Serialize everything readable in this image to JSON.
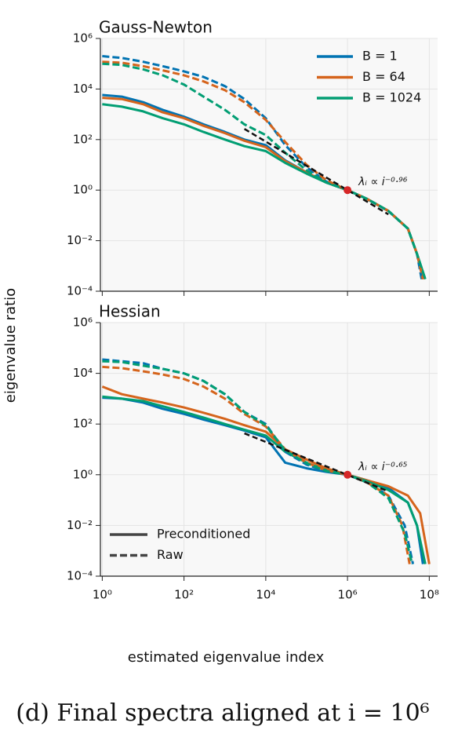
{
  "figure": {
    "ylabel": "eigenvalue ratio",
    "xlabel": "estimated eigenvalue index",
    "caption": "(d) Final spectra aligned at i = 10⁶"
  },
  "chart_data": [
    {
      "type": "line",
      "title": "Gauss-Newton",
      "xscale": "log",
      "yscale": "log",
      "grid": true,
      "xlim": [
        0.9,
        160000000.0
      ],
      "ylim": [
        0.0001,
        1000000
      ],
      "xticks": [
        1,
        100,
        10000,
        1000000,
        100000000
      ],
      "yticks": [
        {
          "value": 0.0001,
          "label": "10⁻⁴"
        },
        {
          "value": 0.01,
          "label": "10⁻²"
        },
        {
          "value": 1,
          "label": "10⁰"
        },
        {
          "value": 100,
          "label": "10²"
        },
        {
          "value": 10000,
          "label": "10⁴"
        },
        {
          "value": 1000000,
          "label": "10⁶"
        }
      ],
      "legend": {
        "position": "upper right",
        "entries": [
          {
            "label": "B = 1",
            "color": "#0173b2"
          },
          {
            "label": "B = 64",
            "color": "#d5641c"
          },
          {
            "label": "B = 1024",
            "color": "#029e73"
          }
        ]
      },
      "series": [
        {
          "color": "#0173b2",
          "style": "solid",
          "x": [
            1,
            3,
            10,
            30,
            100,
            300,
            1000,
            3000,
            10000,
            30000,
            100000,
            300000,
            1000000,
            3000000,
            10000000,
            30000000,
            50000000,
            70000000
          ],
          "values": [
            5800,
            5000,
            3000,
            1500,
            800,
            400,
            200,
            100,
            60,
            15,
            5,
            2,
            1,
            0.45,
            0.15,
            0.03,
            0.003,
            0.0003
          ]
        },
        {
          "color": "#d5641c",
          "style": "solid",
          "x": [
            1,
            3,
            10,
            30,
            100,
            300,
            1000,
            3000,
            10000,
            30000,
            100000,
            300000,
            1000000,
            3000000,
            10000000,
            30000000,
            50000000,
            75000000
          ],
          "values": [
            4500,
            4000,
            2500,
            1200,
            700,
            350,
            180,
            90,
            50,
            14,
            5,
            2,
            1,
            0.45,
            0.15,
            0.03,
            0.003,
            0.0003
          ]
        },
        {
          "color": "#029e73",
          "style": "solid",
          "x": [
            1,
            3,
            10,
            30,
            100,
            300,
            1000,
            3000,
            10000,
            30000,
            100000,
            300000,
            1000000,
            3000000,
            10000000,
            30000000,
            50000000,
            80000000
          ],
          "values": [
            2500,
            2000,
            1300,
            700,
            400,
            200,
            100,
            55,
            35,
            12,
            4.5,
            2,
            1,
            0.45,
            0.15,
            0.03,
            0.003,
            0.0003
          ]
        },
        {
          "color": "#0173b2",
          "style": "dashed",
          "x": [
            1,
            3,
            10,
            30,
            100,
            300,
            1000,
            3000,
            10000,
            30000,
            100000,
            300000,
            1000000,
            3000000,
            10000000,
            30000000,
            50000000,
            65000000
          ],
          "values": [
            200000,
            170000,
            120000,
            80000,
            50000,
            30000,
            13000,
            4000,
            700,
            60,
            8,
            2.2,
            1,
            0.45,
            0.15,
            0.03,
            0.003,
            0.0003
          ]
        },
        {
          "color": "#d5641c",
          "style": "dashed",
          "x": [
            1,
            3,
            10,
            30,
            100,
            300,
            1000,
            3000,
            10000,
            30000,
            100000,
            300000,
            1000000,
            3000000,
            10000000,
            30000000,
            50000000,
            70000000
          ],
          "values": [
            120000,
            110000,
            80000,
            55000,
            35000,
            20000,
            9000,
            3000,
            600,
            80,
            10,
            2.5,
            1,
            0.45,
            0.15,
            0.03,
            0.003,
            0.0003
          ]
        },
        {
          "color": "#029e73",
          "style": "dashed",
          "x": [
            1,
            3,
            10,
            30,
            100,
            300,
            1000,
            3000,
            10000,
            30000,
            100000,
            300000,
            1000000,
            3000000,
            10000000,
            30000000,
            50000000,
            80000000
          ],
          "values": [
            100000,
            90000,
            60000,
            35000,
            15000,
            5000,
            1500,
            400,
            150,
            30,
            6,
            2,
            1,
            0.45,
            0.15,
            0.03,
            0.003,
            0.0003
          ]
        }
      ],
      "fit": {
        "x": [
          3000,
          10000000
        ],
        "values": [
          264,
          0.11
        ]
      },
      "anchor": {
        "x": 1000000,
        "value": 1
      },
      "annotation": "λᵢ ∝ i⁻⁰·⁹⁶"
    },
    {
      "type": "line",
      "title": "Hessian",
      "xscale": "log",
      "yscale": "log",
      "grid": true,
      "xlim": [
        0.9,
        160000000.0
      ],
      "ylim": [
        0.0001,
        1000000
      ],
      "xticks": [
        {
          "value": 1,
          "label": "10⁰"
        },
        {
          "value": 100,
          "label": "10²"
        },
        {
          "value": 10000,
          "label": "10⁴"
        },
        {
          "value": 1000000,
          "label": "10⁶"
        },
        {
          "value": 100000000,
          "label": "10⁸"
        }
      ],
      "yticks": [
        {
          "value": 0.0001,
          "label": "10⁻⁴"
        },
        {
          "value": 0.01,
          "label": "10⁻²"
        },
        {
          "value": 1,
          "label": "10⁰"
        },
        {
          "value": 100,
          "label": "10²"
        },
        {
          "value": 10000,
          "label": "10⁴"
        },
        {
          "value": 1000000,
          "label": "10⁶"
        }
      ],
      "style_legend": {
        "position": "lower left",
        "entries": [
          {
            "label": "Preconditioned",
            "style": "solid"
          },
          {
            "label": "Raw",
            "style": "dashed"
          }
        ]
      },
      "series": [
        {
          "color": "#0173b2",
          "style": "solid",
          "x": [
            1,
            3,
            10,
            30,
            100,
            300,
            1000,
            3000,
            10000,
            30000,
            100000,
            300000,
            1000000,
            3000000,
            10000000,
            30000000,
            50000000,
            70000000
          ],
          "values": [
            1100,
            1000,
            700,
            400,
            250,
            150,
            90,
            55,
            30,
            3,
            1.8,
            1.3,
            1,
            0.6,
            0.3,
            0.08,
            0.01,
            0.0003
          ]
        },
        {
          "color": "#d5641c",
          "style": "solid",
          "x": [
            1,
            3,
            10,
            30,
            100,
            300,
            1000,
            3000,
            10000,
            30000,
            100000,
            300000,
            1000000,
            3000000,
            10000000,
            30000000,
            60000000,
            100000000
          ],
          "values": [
            3000,
            1500,
            1000,
            700,
            450,
            280,
            160,
            90,
            50,
            10,
            4,
            1.8,
            1,
            0.6,
            0.35,
            0.15,
            0.03,
            0.0003
          ]
        },
        {
          "color": "#029e73",
          "style": "solid",
          "x": [
            1,
            3,
            10,
            30,
            100,
            300,
            1000,
            3000,
            10000,
            30000,
            100000,
            300000,
            1000000,
            3000000,
            10000000,
            30000000,
            50000000,
            80000000
          ],
          "values": [
            1200,
            1000,
            800,
            500,
            300,
            180,
            100,
            60,
            35,
            8,
            3,
            1.5,
            1,
            0.55,
            0.25,
            0.08,
            0.01,
            0.0003
          ]
        },
        {
          "color": "#0173b2",
          "style": "dashed",
          "x": [
            1,
            3,
            10,
            30,
            100,
            300,
            1000,
            3000,
            10000,
            30000,
            100000,
            300000,
            1000000,
            3000000,
            10000000,
            25000000,
            40000000
          ],
          "values": [
            35000,
            30000,
            25000,
            15000,
            10000,
            5000,
            1500,
            300,
            100,
            8,
            2.5,
            1.4,
            1,
            0.5,
            0.15,
            0.01,
            0.0003
          ]
        },
        {
          "color": "#d5641c",
          "style": "dashed",
          "x": [
            1,
            3,
            10,
            30,
            100,
            300,
            1000,
            3000,
            10000,
            30000,
            100000,
            300000,
            1000000,
            3000000,
            10000000,
            22000000,
            33000000
          ],
          "values": [
            18000,
            16000,
            12000,
            9000,
            6000,
            3000,
            1000,
            250,
            80,
            10,
            3,
            1.5,
            1,
            0.5,
            0.15,
            0.01,
            0.0003
          ]
        },
        {
          "color": "#029e73",
          "style": "dashed",
          "x": [
            1,
            3,
            10,
            30,
            100,
            300,
            1000,
            3000,
            10000,
            30000,
            100000,
            300000,
            1000000,
            3000000,
            10000000,
            25000000,
            38000000
          ],
          "values": [
            30000,
            28000,
            20000,
            15000,
            10000,
            5000,
            1500,
            300,
            90,
            9,
            2.8,
            1.4,
            1,
            0.5,
            0.12,
            0.005,
            0.0003
          ]
        }
      ],
      "fit": {
        "x": [
          3000,
          10000000
        ],
        "values": [
          43,
          0.22
        ]
      },
      "anchor": {
        "x": 1000000,
        "value": 1
      },
      "annotation": "λᵢ ∝ i⁻⁰·⁶⁵"
    }
  ]
}
